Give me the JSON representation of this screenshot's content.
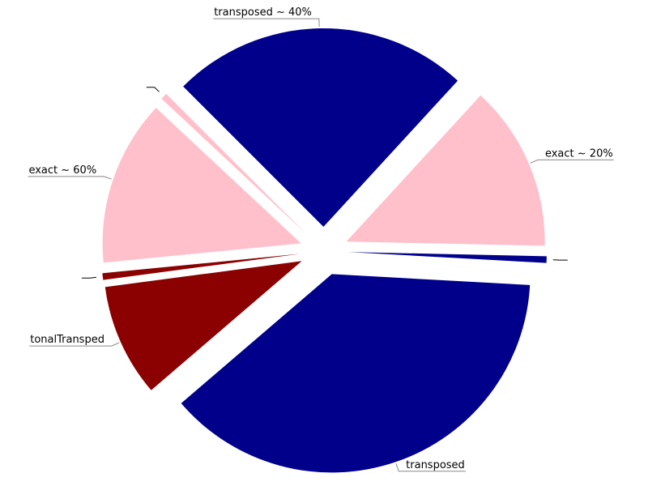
{
  "chart_data": {
    "type": "pie",
    "legend": "none",
    "slices": [
      {
        "label": "transposed ~ 40%",
        "value": 22.5,
        "color": "#00008b"
      },
      {
        "label": "exact ~ 20%",
        "value": 12.5,
        "color": "#ffc0cb"
      },
      {
        "label": "",
        "value": 0.5,
        "color": "#00008b"
      },
      {
        "label": "transposed",
        "value": 35,
        "color": "#00008b"
      },
      {
        "label": "tonalTransped",
        "value": 8.5,
        "color": "#8b0000"
      },
      {
        "label": "",
        "value": 0.5,
        "color": "#8b0000"
      },
      {
        "label": "exact ~ 60%",
        "value": 12.5,
        "color": "#ffc0cb"
      },
      {
        "label": "",
        "value": 0.5,
        "color": "#ffc0cb"
      }
    ]
  }
}
